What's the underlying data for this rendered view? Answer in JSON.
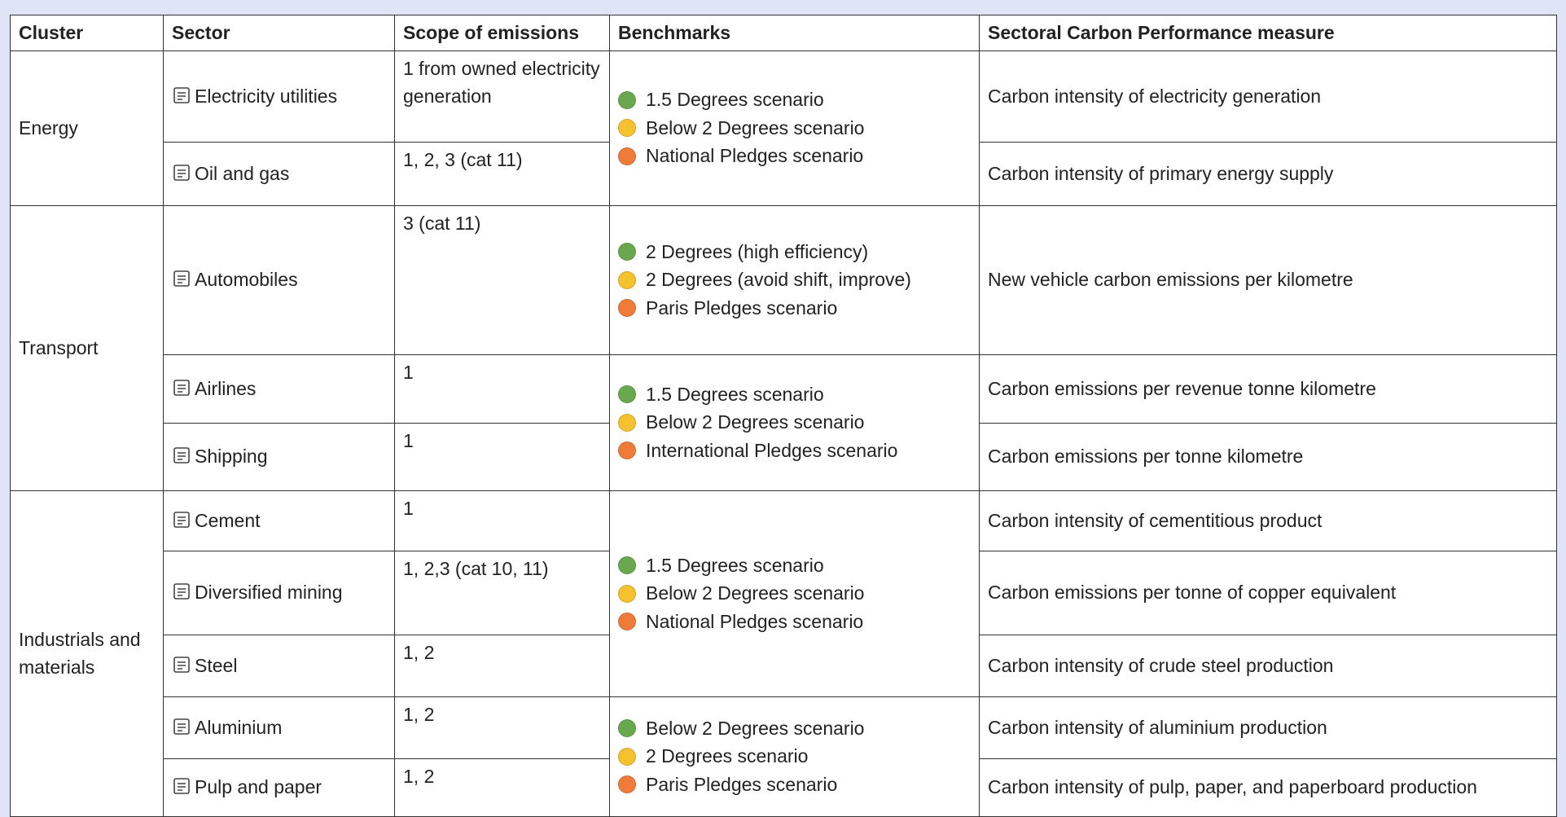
{
  "header": {
    "cluster": "Cluster",
    "sector": "Sector",
    "scope": "Scope of emissions",
    "benchmarks": "Benchmarks",
    "measure": "Sectoral Carbon Performance measure"
  },
  "clusters": [
    {
      "name": "Energy",
      "sectors": [
        {
          "name": "Electricity utilities",
          "scope": "1 from owned electricity generation",
          "measure": "Carbon intensity of electricity generation"
        },
        {
          "name": "Oil and gas",
          "scope": "1, 2, 3 (cat 11)",
          "measure": "Carbon intensity of primary energy supply"
        }
      ]
    },
    {
      "name": "Transport",
      "sectors": [
        {
          "name": "Automobiles",
          "scope": "3 (cat 11)",
          "measure": "New vehicle carbon emissions per kilometre"
        },
        {
          "name": "Airlines",
          "scope": "1",
          "measure": "Carbon emissions per revenue tonne kilometre"
        },
        {
          "name": "Shipping",
          "scope": "1",
          "measure": "Carbon emissions per tonne kilometre"
        }
      ]
    },
    {
      "name": "Industrials and materials",
      "sectors": [
        {
          "name": "Cement",
          "scope": "1",
          "measure": "Carbon intensity of cementitious product"
        },
        {
          "name": "Diversified mining",
          "scope": "1, 2,3 (cat 10, 11)",
          "measure": "Carbon emissions per tonne of copper equivalent"
        },
        {
          "name": "Steel",
          "scope": "1, 2",
          "measure": "Carbon intensity of crude steel production"
        },
        {
          "name": "Aluminium",
          "scope": "1, 2",
          "measure": "Carbon intensity of aluminium production"
        },
        {
          "name": "Pulp and paper",
          "scope": "1, 2",
          "measure": "Carbon intensity of pulp, paper, and paperboard production"
        }
      ]
    }
  ],
  "benchmark_groups": [
    {
      "items": [
        {
          "label": "1.5 Degrees scenario",
          "color": "#6aa84f"
        },
        {
          "label": "Below 2 Degrees scenario",
          "color": "#f5c12e"
        },
        {
          "label": "National Pledges scenario",
          "color": "#ee7b3a"
        }
      ]
    },
    {
      "items": [
        {
          "label": "2 Degrees (high efficiency)",
          "color": "#6aa84f"
        },
        {
          "label": "2 Degrees (avoid shift, improve)",
          "color": "#f5c12e"
        },
        {
          "label": "Paris Pledges scenario",
          "color": "#ee7b3a"
        }
      ]
    },
    {
      "items": [
        {
          "label": "1.5 Degrees scenario",
          "color": "#6aa84f"
        },
        {
          "label": "Below 2 Degrees scenario",
          "color": "#f5c12e"
        },
        {
          "label": "International Pledges scenario",
          "color": "#ee7b3a"
        }
      ]
    },
    {
      "items": [
        {
          "label": "1.5 Degrees scenario",
          "color": "#6aa84f"
        },
        {
          "label": "Below 2 Degrees scenario",
          "color": "#f5c12e"
        },
        {
          "label": "National Pledges scenario",
          "color": "#ee7b3a"
        }
      ]
    },
    {
      "items": [
        {
          "label": "Below 2 Degrees scenario",
          "color": "#6aa84f"
        },
        {
          "label": "2 Degrees scenario",
          "color": "#f5c12e"
        },
        {
          "label": "Paris Pledges scenario",
          "color": "#ee7b3a"
        }
      ]
    }
  ]
}
